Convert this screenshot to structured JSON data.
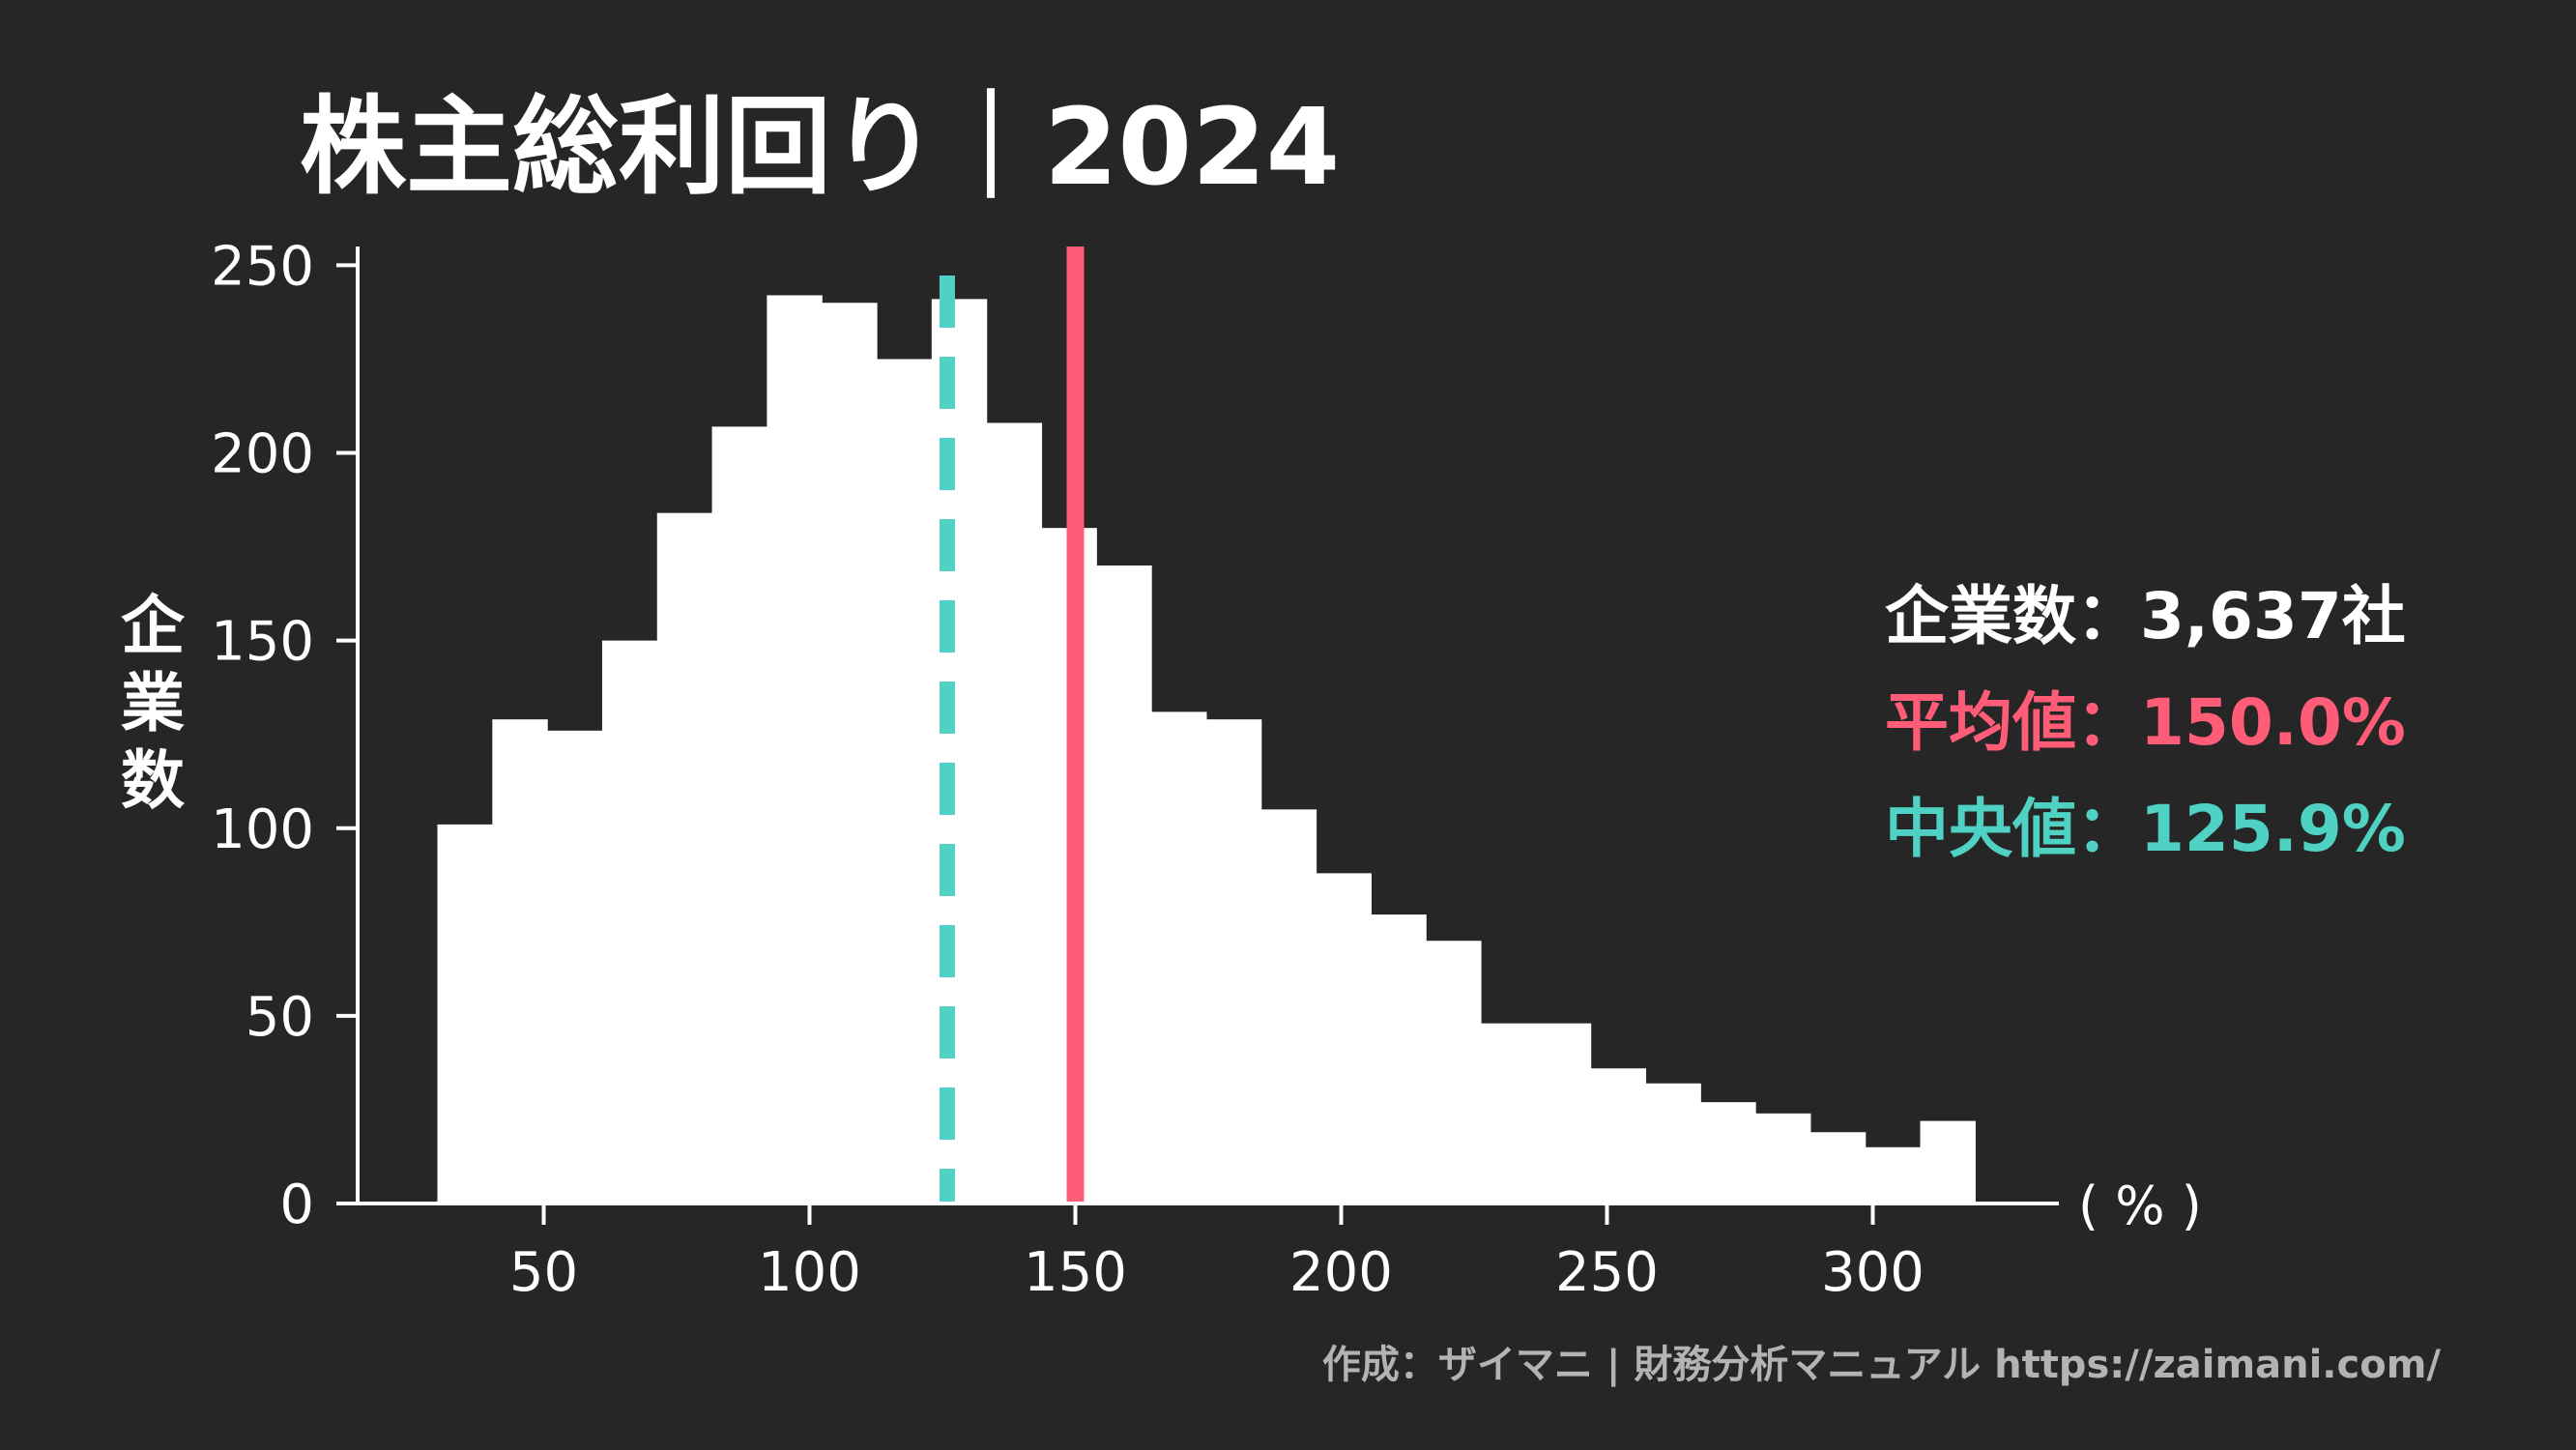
{
  "chart_data": {
    "type": "bar",
    "title": "株主総利回り｜2024",
    "ylabel": "企業数",
    "xlabel": "( % )",
    "xlim": [
      15,
      335
    ],
    "ylim": [
      0,
      255
    ],
    "x_ticks": [
      50,
      100,
      150,
      200,
      250,
      300
    ],
    "y_ticks": [
      0,
      50,
      100,
      150,
      200,
      250
    ],
    "bin_width": 10.33,
    "bin_start": 30,
    "values": [
      101,
      129,
      126,
      150,
      184,
      207,
      242,
      240,
      225,
      241,
      208,
      180,
      170,
      131,
      129,
      105,
      88,
      77,
      70,
      48,
      48,
      36,
      32,
      27,
      24,
      19,
      15,
      22
    ],
    "bar_color": "#ffffff",
    "mean": {
      "value": 150.0,
      "color": "#ff5c78"
    },
    "median": {
      "value": 125.9,
      "color": "#4fd2c3"
    },
    "stats": [
      {
        "label": "企業数",
        "value": "3,637社",
        "color": "#ffffff"
      },
      {
        "label": "平均値",
        "value": "150.0%",
        "color": "#ff5c78"
      },
      {
        "label": "中央値",
        "value": "125.9%",
        "color": "#4fd2c3"
      }
    ],
    "stats_separator": "：",
    "footer": "作成：ザイマニ | 財務分析マニュアル https://zaimani.com/",
    "footer_color": "#b3b3b3",
    "grid": false
  }
}
